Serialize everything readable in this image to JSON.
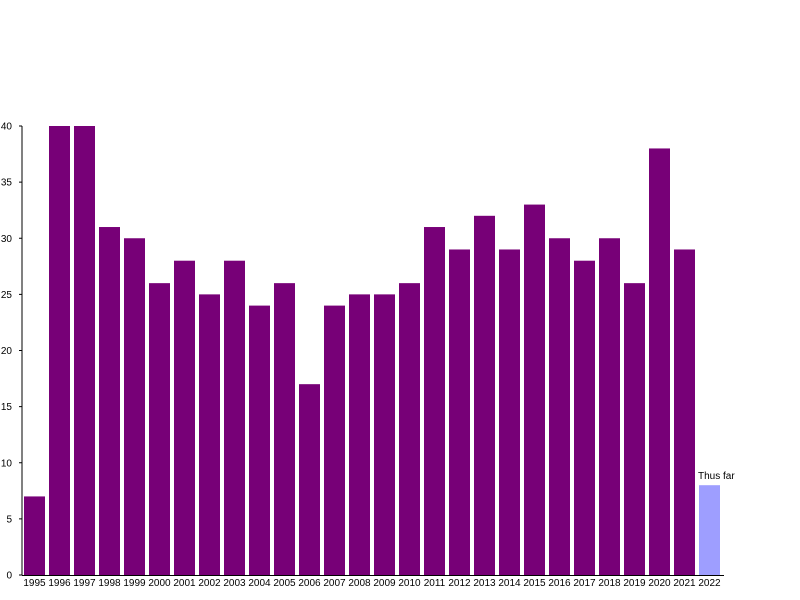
{
  "chart_data": {
    "type": "bar",
    "categories": [
      "1995",
      "1996",
      "1997",
      "1998",
      "1999",
      "2000",
      "2001",
      "2002",
      "2003",
      "2004",
      "2005",
      "2006",
      "2007",
      "2008",
      "2009",
      "2010",
      "2011",
      "2012",
      "2013",
      "2014",
      "2015",
      "2016",
      "2017",
      "2018",
      "2019",
      "2020",
      "2021",
      "2022"
    ],
    "values": [
      7,
      40,
      40,
      31,
      30,
      26,
      28,
      25,
      28,
      24,
      26,
      17,
      24,
      25,
      25,
      26,
      31,
      29,
      32,
      29,
      33,
      30,
      28,
      30,
      26,
      38,
      29,
      8
    ],
    "ylim": [
      0,
      40
    ],
    "yticks": [
      0,
      5,
      10,
      15,
      20,
      25,
      30,
      35,
      40
    ],
    "grid": false,
    "legend": "none",
    "bar_color": "#770077",
    "highlight_bar_color": "#9e9eff",
    "annotations": [
      {
        "category": "2022",
        "text": "Thus far"
      }
    ]
  }
}
